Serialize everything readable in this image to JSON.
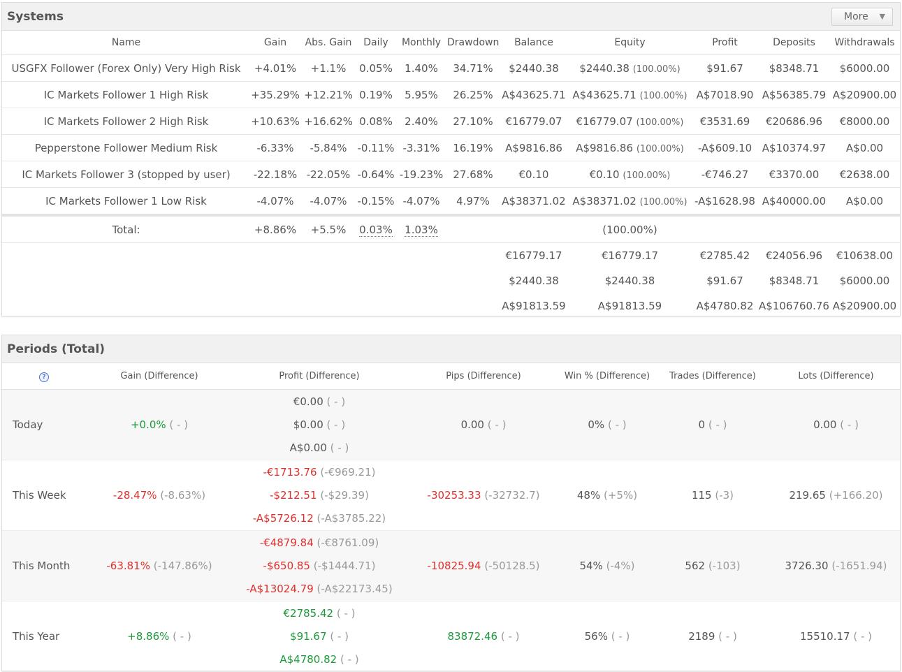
{
  "systems": {
    "title": "Systems",
    "more_label": "More",
    "columns": [
      "Name",
      "Gain",
      "Abs. Gain",
      "Daily",
      "Monthly",
      "Drawdown",
      "Balance",
      "Equity",
      "Profit",
      "Deposits",
      "Withdrawals"
    ],
    "rows": [
      {
        "name": "USGFX Follower (Forex Only) Very High Risk",
        "gain": "+4.01%",
        "abs_gain": "+1.1%",
        "daily": "0.05%",
        "monthly": "1.40%",
        "drawdown": "34.71%",
        "balance": "$2440.38",
        "equity": "$2440.38",
        "equity_pct": "(100.00%)",
        "profit": "$91.67",
        "deposits": "$8348.71",
        "withdrawals": "$6000.00"
      },
      {
        "name": "IC Markets Follower 1 High Risk",
        "gain": "+35.29%",
        "abs_gain": "+12.21%",
        "daily": "0.19%",
        "monthly": "5.95%",
        "drawdown": "26.25%",
        "balance": "A$43625.71",
        "equity": "A$43625.71",
        "equity_pct": "(100.00%)",
        "profit": "A$7018.90",
        "deposits": "A$56385.79",
        "withdrawals": "A$20900.00"
      },
      {
        "name": "IC Markets Follower 2 High Risk",
        "gain": "+10.63%",
        "abs_gain": "+16.62%",
        "daily": "0.08%",
        "monthly": "2.40%",
        "drawdown": "27.10%",
        "balance": "€16779.07",
        "equity": "€16779.07",
        "equity_pct": "(100.00%)",
        "profit": "€3531.69",
        "deposits": "€20686.96",
        "withdrawals": "€8000.00"
      },
      {
        "name": "Pepperstone Follower Medium Risk",
        "gain": "-6.33%",
        "abs_gain": "-5.84%",
        "daily": "-0.11%",
        "monthly": "-3.31%",
        "drawdown": "16.19%",
        "balance": "A$9816.86",
        "equity": "A$9816.86",
        "equity_pct": "(100.00%)",
        "profit": "-A$609.10",
        "deposits": "A$10374.97",
        "withdrawals": "A$0.00"
      },
      {
        "name": "IC Markets Follower 3 (stopped by user)",
        "gain": "-22.18%",
        "abs_gain": "-22.05%",
        "daily": "-0.64%",
        "monthly": "-19.23%",
        "drawdown": "27.68%",
        "balance": "€0.10",
        "equity": "€0.10",
        "equity_pct": "(100.00%)",
        "profit": "-€746.27",
        "deposits": "€3370.00",
        "withdrawals": "€2638.00"
      },
      {
        "name": "IC Markets Follower 1 Low Risk",
        "gain": "-4.07%",
        "abs_gain": "-4.07%",
        "daily": "-0.15%",
        "monthly": "-4.07%",
        "drawdown": "4.97%",
        "balance": "A$38371.02",
        "equity": "A$38371.02",
        "equity_pct": "(100.00%)",
        "profit": "-A$1628.98",
        "deposits": "A$40000.00",
        "withdrawals": "A$0.00"
      }
    ],
    "total": {
      "label": "Total:",
      "gain": "+8.86%",
      "abs_gain": "+5.5%",
      "daily": "0.03%",
      "monthly": "1.03%",
      "equity_pct": "(100.00%)"
    },
    "currency_totals": [
      {
        "balance": "€16779.17",
        "equity": "€16779.17",
        "profit": "€2785.42",
        "deposits": "€24056.96",
        "withdrawals": "€10638.00"
      },
      {
        "balance": "$2440.38",
        "equity": "$2440.38",
        "profit": "$91.67",
        "deposits": "$8348.71",
        "withdrawals": "$6000.00"
      },
      {
        "balance": "A$91813.59",
        "equity": "A$91813.59",
        "profit": "A$4780.82",
        "deposits": "A$106760.76",
        "withdrawals": "A$20900.00"
      }
    ]
  },
  "periods": {
    "title": "Periods (Total)",
    "help_icon": "question-circle-icon",
    "help_glyph": "?",
    "columns": [
      "Gain (Difference)",
      "Profit (Difference)",
      "Pips (Difference)",
      "Win % (Difference)",
      "Trades (Difference)",
      "Lots (Difference)"
    ],
    "rows": [
      {
        "name": "Today",
        "gain": "+0.0%",
        "gain_diff": "( - )",
        "profits": [
          {
            "v": "€0.00",
            "d": "( - )"
          },
          {
            "v": "$0.00",
            "d": "( - )"
          },
          {
            "v": "A$0.00",
            "d": "( - )"
          }
        ],
        "pips": "0.00",
        "pips_diff": "( - )",
        "win": "0%",
        "win_diff": "( - )",
        "trades": "0",
        "trades_diff": "( - )",
        "lots": "0.00",
        "lots_diff": "( - )"
      },
      {
        "name": "This Week",
        "gain": "-28.47%",
        "gain_diff": "(-8.63%)",
        "profits": [
          {
            "v": "-€1713.76",
            "d": "(-€969.21)"
          },
          {
            "v": "-$212.51",
            "d": "(-$29.39)"
          },
          {
            "v": "-A$5726.12",
            "d": "(-A$3785.22)"
          }
        ],
        "pips": "-30253.33",
        "pips_diff": "(-32732.7)",
        "win": "48%",
        "win_diff": "(+5%)",
        "trades": "115",
        "trades_diff": "(-3)",
        "lots": "219.65",
        "lots_diff": "(+166.20)"
      },
      {
        "name": "This Month",
        "gain": "-63.81%",
        "gain_diff": "(-147.86%)",
        "profits": [
          {
            "v": "-€4879.84",
            "d": "(-€8761.09)"
          },
          {
            "v": "-$650.85",
            "d": "(-$1444.71)"
          },
          {
            "v": "-A$13024.79",
            "d": "(-A$22173.45)"
          }
        ],
        "pips": "-10825.94",
        "pips_diff": "(-50128.5)",
        "win": "54%",
        "win_diff": "(-4%)",
        "trades": "562",
        "trades_diff": "(-103)",
        "lots": "3726.30",
        "lots_diff": "(-1651.94)"
      },
      {
        "name": "This Year",
        "gain": "+8.86%",
        "gain_diff": "( - )",
        "profits": [
          {
            "v": "€2785.42",
            "d": "( - )"
          },
          {
            "v": "$91.67",
            "d": "( - )"
          },
          {
            "v": "A$4780.82",
            "d": "( - )"
          }
        ],
        "pips": "83872.46",
        "pips_diff": "( - )",
        "win": "56%",
        "win_diff": "( - )",
        "trades": "2189",
        "trades_diff": "( - )",
        "lots": "15510.17",
        "lots_diff": "( - )"
      }
    ]
  },
  "colors": {
    "positive": "#1a9b3a",
    "negative": "#e0302b",
    "muted": "#999999",
    "header_bg": "#f1f1f1"
  }
}
